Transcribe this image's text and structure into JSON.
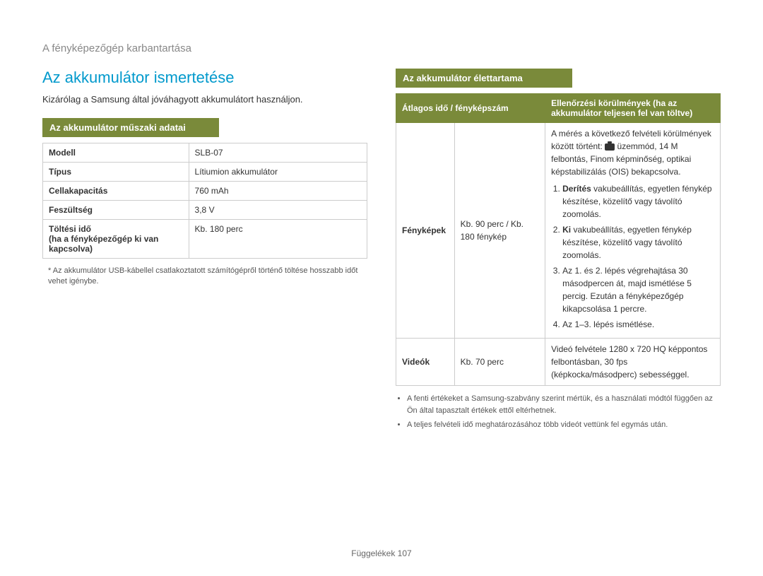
{
  "breadcrumb": "A fényképezőgép karbantartása",
  "title": "Az akkumulátor ismertetése",
  "intro": "Kizárólag a Samsung által jóváhagyott akkumulátort használjon.",
  "specs_header": "Az akkumulátor műszaki adatai",
  "specs": {
    "rows": [
      [
        "Modell",
        "SLB-07"
      ],
      [
        "Típus",
        "Lítiumion akkumulátor"
      ],
      [
        "Cellakapacitás",
        "760 mAh"
      ],
      [
        "Feszültség",
        "3,8 V"
      ],
      [
        "Töltési idő\n(ha a fényképezőgép ki van kapcsolva)",
        "Kb. 180 perc"
      ]
    ]
  },
  "specs_footnote": "* Az akkumulátor USB-kábellel csatlakoztatott számítógépről történő töltése hosszabb időt vehet igénybe.",
  "life_header": "Az akkumulátor élettartama",
  "life_table": {
    "header1": "Átlagos idő / fényképszám",
    "header2": "Ellenőrzési körülmények (ha az akkumulátor teljesen fel van töltve)",
    "row1_label": "Fényképek",
    "row1_value": "Kb. 90 perc / Kb. 180 fénykép",
    "row1_intro": "A mérés a következő felvételi körülmények között történt:",
    "row1_intro2": "üzemmód, 14 M felbontás, Finom képminőség, optikai képstabilizálás (OIS) bekapcsolva.",
    "row1_step1a": "Derítés",
    "row1_step1b": " vakubeállítás, egyetlen fénykép készítése, közelítő vagy távolító zoomolás.",
    "row1_step2a": "Ki",
    "row1_step2b": " vakubeállítás, egyetlen fénykép készítése, közelítő vagy távolító zoomolás.",
    "row1_step3": "Az 1. és 2. lépés végrehajtása 30 másodpercen át, majd ismétlése 5 percig. Ezután a fényképezőgép kikapcsolása 1 percre.",
    "row1_step4": "Az 1–3. lépés ismétlése.",
    "row2_label": "Videók",
    "row2_value": "Kb. 70 perc",
    "row2_cond": "Videó felvétele 1280 x 720 HQ képpontos felbontásban, 30 fps (képkocka/másodperc) sebességgel."
  },
  "life_bullets": [
    "A fenti értékeket a Samsung-szabvány szerint mértük, és a használati módtól függően az Ön által tapasztalt értékek ettől eltérhetnek.",
    "A teljes felvételi idő meghatározásához több videót vettünk fel egymás után."
  ],
  "footer_label": "Függelékek",
  "footer_page": "107",
  "colors": {
    "accent_blue": "#0099cc",
    "accent_green": "#7a8a3a",
    "border": "#cccccc",
    "muted": "#888888"
  }
}
